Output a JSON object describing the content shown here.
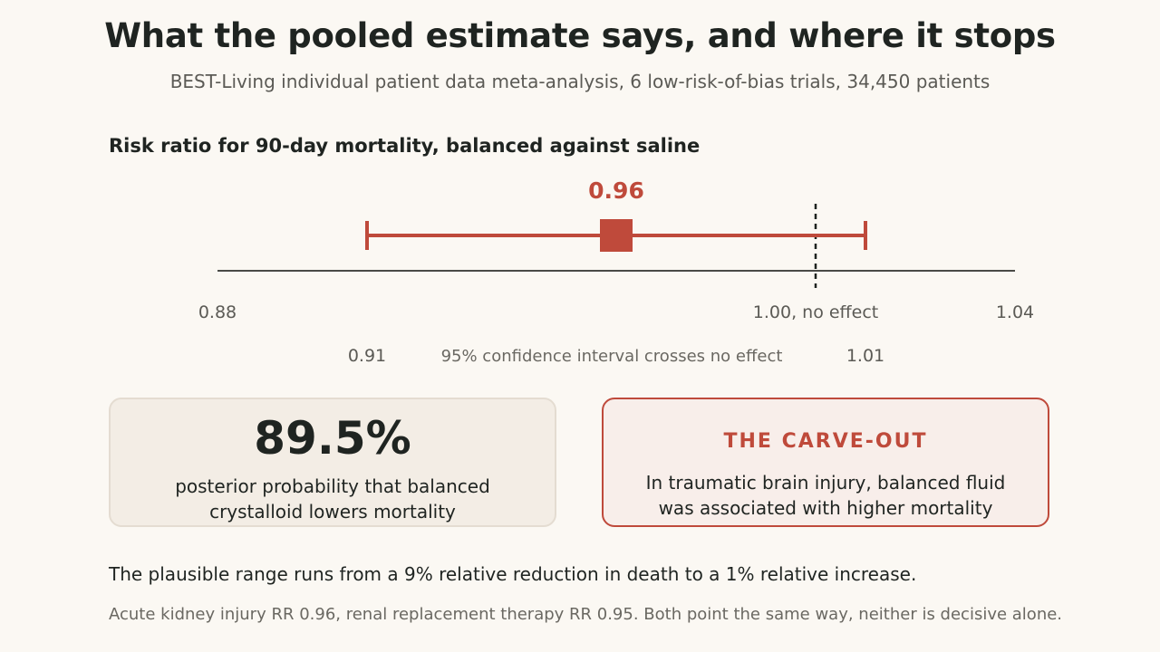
{
  "header": {
    "title": "What the pooled estimate says, and where it stops",
    "subtitle": "BEST-Living individual patient data meta-analysis, 6 low-risk-of-bias trials, 34,450 patients"
  },
  "chart_data": {
    "type": "forest",
    "title": "Risk ratio for 90-day mortality, balanced against saline",
    "xlim": [
      0.88,
      1.04
    ],
    "x_ticks": [
      {
        "value": 0.88,
        "label": "0.88"
      },
      {
        "value": 1.0,
        "label": "1.00, no effect"
      },
      {
        "value": 1.04,
        "label": "1.04"
      }
    ],
    "reference_line": 1.0,
    "estimate": {
      "value": 0.96,
      "label": "0.96"
    },
    "ci": {
      "lower": 0.91,
      "upper": 1.01,
      "lower_label": "0.91",
      "upper_label": "1.01",
      "note": "95% confidence interval crosses no effect"
    },
    "colors": {
      "estimate": "#bf4a3b",
      "axis": "#4a4a46",
      "reference": "#1f2421"
    }
  },
  "cards": {
    "probability": {
      "value": "89.5%",
      "text": "posterior probability that balanced crystalloid lowers mortality"
    },
    "carveout": {
      "heading": "THE CARVE-OUT",
      "text": "In traumatic brain injury, balanced fluid was associated with higher mortality"
    }
  },
  "footer": {
    "main": "The plausible range runs from a 9% relative reduction in death to a 1% relative increase.",
    "note": "Acute kidney injury RR 0.96, renal replacement therapy RR 0.95. Both point the same way, neither is decisive alone."
  }
}
